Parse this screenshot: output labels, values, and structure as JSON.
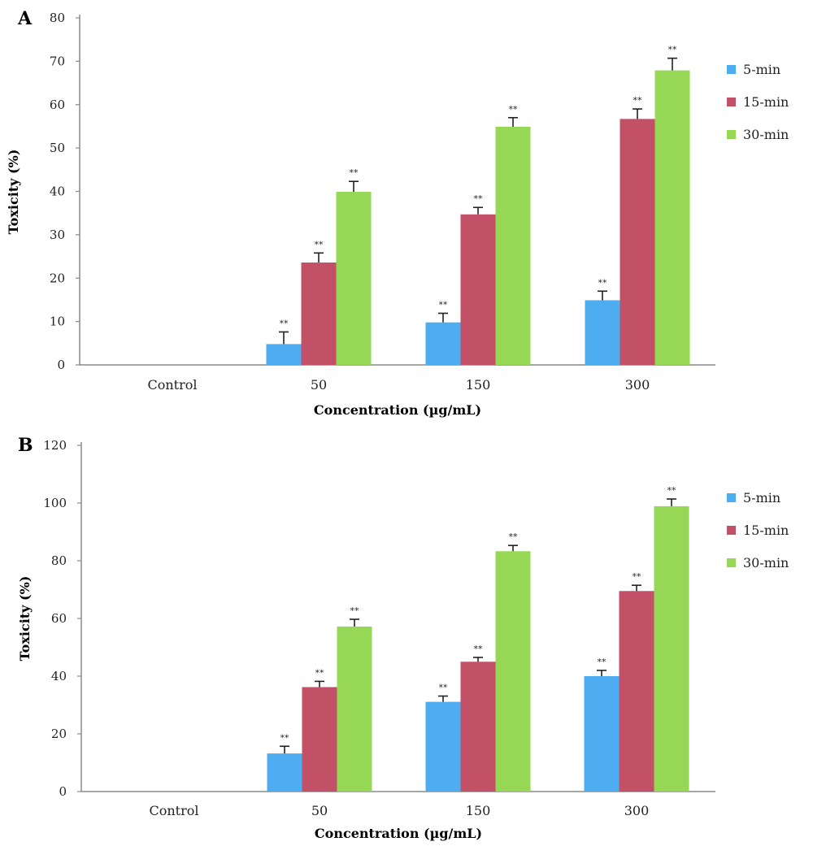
{
  "colors": {
    "5-min": "#4dadf0",
    "15-min": "#c25066",
    "30-min": "#96d856"
  },
  "chart_data": [
    {
      "panel": "A",
      "type": "bar",
      "categories": [
        "Control",
        "50",
        "150",
        "300"
      ],
      "xlabel": "Concentration (µg/mL)",
      "ylabel": "Toxicity (%)",
      "ylim": [
        0,
        80
      ],
      "yticks": [
        0,
        10,
        20,
        30,
        40,
        50,
        60,
        70,
        80
      ],
      "legend_position": "right",
      "grid": false,
      "series": [
        {
          "name": "5-min",
          "values": [
            0,
            4.8,
            9.8,
            14.9
          ],
          "errors": [
            0,
            2.8,
            2.1,
            2.1
          ]
        },
        {
          "name": "15-min",
          "values": [
            0,
            23.6,
            34.7,
            56.7
          ],
          "errors": [
            0,
            2.2,
            1.6,
            2.3
          ]
        },
        {
          "name": "30-min",
          "values": [
            0,
            39.9,
            54.9,
            67.9
          ],
          "errors": [
            0,
            2.4,
            2.1,
            2.8
          ]
        }
      ],
      "annotations": [
        [
          "",
          "**",
          "**",
          "**"
        ],
        [
          "",
          "**",
          "**",
          "**"
        ],
        [
          "",
          "**",
          "**",
          "**"
        ]
      ]
    },
    {
      "panel": "B",
      "type": "bar",
      "categories": [
        "Control",
        "50",
        "150",
        "300"
      ],
      "xlabel": "Concentration (µg/mL)",
      "ylabel": "Toxicity (%)",
      "ylim": [
        0,
        120
      ],
      "yticks": [
        0,
        20,
        40,
        60,
        80,
        100,
        120
      ],
      "legend_position": "right",
      "grid": false,
      "series": [
        {
          "name": "5-min",
          "values": [
            0,
            13.2,
            31.1,
            40.0
          ],
          "errors": [
            0,
            2.5,
            2.0,
            2.0
          ]
        },
        {
          "name": "15-min",
          "values": [
            0,
            36.2,
            45.0,
            69.5
          ],
          "errors": [
            0,
            2.0,
            1.5,
            2.0
          ]
        },
        {
          "name": "30-min",
          "values": [
            0,
            57.2,
            83.3,
            98.9
          ],
          "errors": [
            0,
            2.5,
            2.0,
            2.5
          ]
        }
      ],
      "annotations": [
        [
          "",
          "**",
          "**",
          "**"
        ],
        [
          "",
          "**",
          "**",
          "**"
        ],
        [
          "",
          "**",
          "**",
          "**"
        ]
      ]
    }
  ]
}
